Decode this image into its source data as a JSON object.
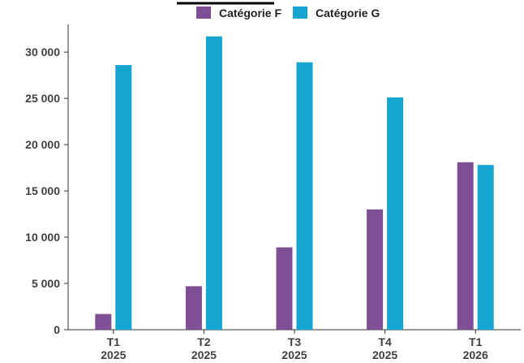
{
  "chart_data": {
    "type": "bar",
    "categories": [
      [
        "T1",
        "2025"
      ],
      [
        "T2",
        "2025"
      ],
      [
        "T3",
        "2025"
      ],
      [
        "T4",
        "2025"
      ],
      [
        "T1",
        "2026"
      ]
    ],
    "series": [
      {
        "name": "Catégorie F",
        "color": "#7e4f94",
        "values": [
          1700,
          4700,
          8900,
          13000,
          18100
        ]
      },
      {
        "name": "Catégorie G",
        "color": "#14a5d1",
        "values": [
          28600,
          31700,
          28900,
          25100,
          17800
        ]
      }
    ],
    "y_ticks": [
      {
        "value": 0,
        "label": "0"
      },
      {
        "value": 5000,
        "label": "5 000"
      },
      {
        "value": 10000,
        "label": "10 000"
      },
      {
        "value": 15000,
        "label": "15 000"
      },
      {
        "value": 20000,
        "label": "20 000"
      },
      {
        "value": 25000,
        "label": "25 000"
      },
      {
        "value": 30000,
        "label": "30 000"
      }
    ],
    "ylim": [
      0,
      33000
    ],
    "grid": false,
    "legend_position": "top-center",
    "title": "",
    "xlabel": "",
    "ylabel": ""
  }
}
